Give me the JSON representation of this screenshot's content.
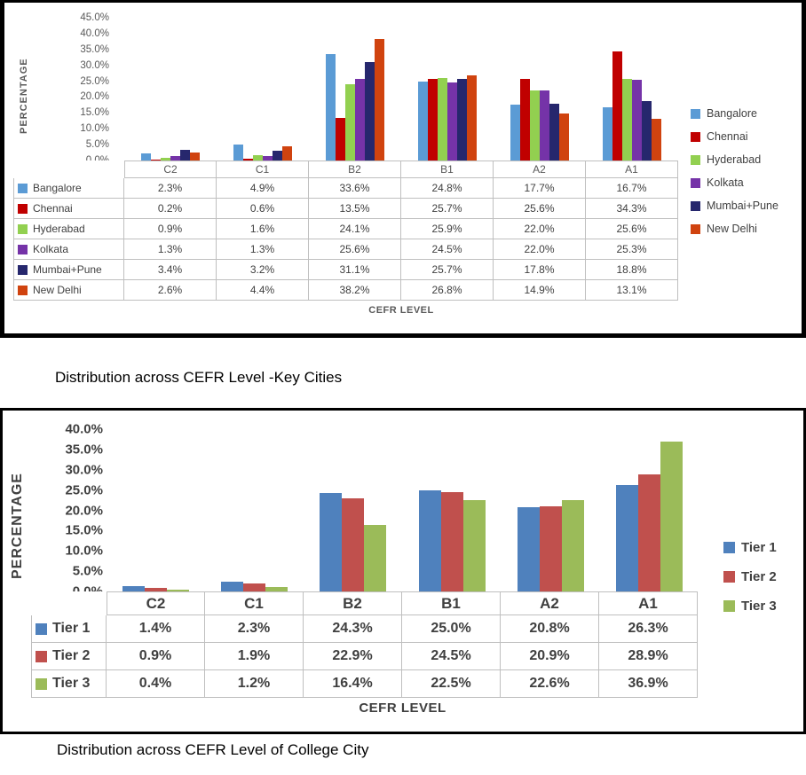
{
  "captions": {
    "key_cities": "Distribution across CEFR Level -Key Cities",
    "college_city": "Distribution across CEFR Level of College City"
  },
  "chart_data": [
    {
      "type": "bar",
      "title": "",
      "xlabel": "CEFR LEVEL",
      "ylabel": "PERCENTAGE",
      "categories": [
        "C2",
        "C1",
        "B2",
        "B1",
        "A2",
        "A1"
      ],
      "ylim": [
        0,
        45
      ],
      "yticks": [
        "45.0%",
        "40.0%",
        "35.0%",
        "30.0%",
        "25.0%",
        "20.0%",
        "15.0%",
        "10.0%",
        "5.0%",
        "0.0%"
      ],
      "grid": false,
      "legend_position": "right",
      "data_table": true,
      "series": [
        {
          "name": "Bangalore",
          "color": "#5B9BD5",
          "values": [
            2.3,
            4.9,
            33.6,
            24.8,
            17.7,
            16.7
          ],
          "labels": [
            "2.3%",
            "4.9%",
            "33.6%",
            "24.8%",
            "17.7%",
            "16.7%"
          ]
        },
        {
          "name": "Chennai",
          "color": "#C00000",
          "values": [
            0.2,
            0.6,
            13.5,
            25.7,
            25.6,
            34.3
          ],
          "labels": [
            "0.2%",
            "0.6%",
            "13.5%",
            "25.7%",
            "25.6%",
            "34.3%"
          ]
        },
        {
          "name": "Hyderabad",
          "color": "#92D050",
          "values": [
            0.9,
            1.6,
            24.1,
            25.9,
            22.0,
            25.6
          ],
          "labels": [
            "0.9%",
            "1.6%",
            "24.1%",
            "25.9%",
            "22.0%",
            "25.6%"
          ]
        },
        {
          "name": "Kolkata",
          "color": "#7533A8",
          "values": [
            1.3,
            1.3,
            25.6,
            24.5,
            22.0,
            25.3
          ],
          "labels": [
            "1.3%",
            "1.3%",
            "25.6%",
            "24.5%",
            "22.0%",
            "25.3%"
          ]
        },
        {
          "name": "Mumbai+Pune",
          "color": "#26276D",
          "values": [
            3.4,
            3.2,
            31.1,
            25.7,
            17.8,
            18.8
          ],
          "labels": [
            "3.4%",
            "3.2%",
            "31.1%",
            "25.7%",
            "17.8%",
            "18.8%"
          ]
        },
        {
          "name": "New Delhi",
          "color": "#D0430F",
          "values": [
            2.6,
            4.4,
            38.2,
            26.8,
            14.9,
            13.1
          ],
          "labels": [
            "2.6%",
            "4.4%",
            "38.2%",
            "26.8%",
            "14.9%",
            "13.1%"
          ]
        }
      ]
    },
    {
      "type": "bar",
      "title": "",
      "xlabel": "CEFR LEVEL",
      "ylabel": "PERCENTAGE",
      "categories": [
        "C2",
        "C1",
        "B2",
        "B1",
        "A2",
        "A1"
      ],
      "ylim": [
        0,
        40
      ],
      "yticks": [
        "40.0%",
        "35.0%",
        "30.0%",
        "25.0%",
        "20.0%",
        "15.0%",
        "10.0%",
        "5.0%",
        "0.0%"
      ],
      "grid": false,
      "legend_position": "right",
      "data_table": true,
      "series": [
        {
          "name": "Tier 1",
          "color": "#4F81BD",
          "values": [
            1.4,
            2.3,
            24.3,
            25.0,
            20.8,
            26.3
          ],
          "labels": [
            "1.4%",
            "2.3%",
            "24.3%",
            "25.0%",
            "20.8%",
            "26.3%"
          ]
        },
        {
          "name": "Tier 2",
          "color": "#C0504D",
          "values": [
            0.9,
            1.9,
            22.9,
            24.5,
            20.9,
            28.9
          ],
          "labels": [
            "0.9%",
            "1.9%",
            "22.9%",
            "24.5%",
            "20.9%",
            "28.9%"
          ]
        },
        {
          "name": "Tier 3",
          "color": "#9BBB59",
          "values": [
            0.4,
            1.2,
            16.4,
            22.5,
            22.6,
            36.9
          ],
          "labels": [
            "0.4%",
            "1.2%",
            "16.4%",
            "22.5%",
            "22.6%",
            "36.9%"
          ]
        }
      ]
    }
  ]
}
